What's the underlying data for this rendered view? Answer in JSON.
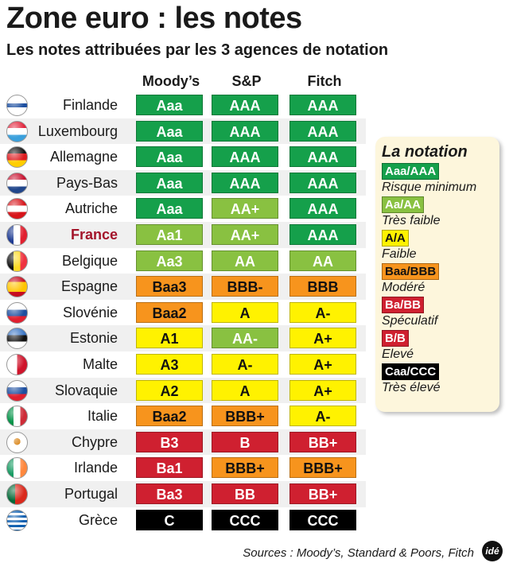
{
  "title": "Zone euro : les notes",
  "subtitle": "Les notes attribuées par les 3 agences de notation",
  "columns": [
    "Moody’s",
    "S&P",
    "Fitch"
  ],
  "chart_data": {
    "type": "table",
    "rows": [
      {
        "country": "Finlande",
        "moodys": "Aaa",
        "sp": "AAA",
        "fitch": "AAA"
      },
      {
        "country": "Luxembourg",
        "moodys": "Aaa",
        "sp": "AAA",
        "fitch": "AAA"
      },
      {
        "country": "Allemagne",
        "moodys": "Aaa",
        "sp": "AAA",
        "fitch": "AAA"
      },
      {
        "country": "Pays-Bas",
        "moodys": "Aaa",
        "sp": "AAA",
        "fitch": "AAA"
      },
      {
        "country": "Autriche",
        "moodys": "Aaa",
        "sp": "AA+",
        "fitch": "AAA"
      },
      {
        "country": "France",
        "moodys": "Aa1",
        "sp": "AA+",
        "fitch": "AAA"
      },
      {
        "country": "Belgique",
        "moodys": "Aa3",
        "sp": "AA",
        "fitch": "AA"
      },
      {
        "country": "Espagne",
        "moodys": "Baa3",
        "sp": "BBB-",
        "fitch": "BBB"
      },
      {
        "country": "Slovénie",
        "moodys": "Baa2",
        "sp": "A",
        "fitch": "A-"
      },
      {
        "country": "Estonie",
        "moodys": "A1",
        "sp": "AA-",
        "fitch": "A+"
      },
      {
        "country": "Malte",
        "moodys": "A3",
        "sp": "A-",
        "fitch": "A+"
      },
      {
        "country": "Slovaquie",
        "moodys": "A2",
        "sp": "A",
        "fitch": "A+"
      },
      {
        "country": "Italie",
        "moodys": "Baa2",
        "sp": "BBB+",
        "fitch": "A-"
      },
      {
        "country": "Chypre",
        "moodys": "B3",
        "sp": "B",
        "fitch": "BB+"
      },
      {
        "country": "Irlande",
        "moodys": "Ba1",
        "sp": "BBB+",
        "fitch": "BBB+"
      },
      {
        "country": "Portugal",
        "moodys": "Ba3",
        "sp": "BB",
        "fitch": "BB+"
      },
      {
        "country": "Grèce",
        "moodys": "C",
        "sp": "CCC",
        "fitch": "CCC"
      }
    ],
    "highlight_country": "France"
  },
  "legend": {
    "title": "La notation",
    "items": [
      {
        "label": "Aaa/AAA",
        "desc": "Risque minimum",
        "cls": "g1"
      },
      {
        "label": "Aa/AA",
        "desc": "Très faible",
        "cls": "g2"
      },
      {
        "label": "A/A",
        "desc": "Faible",
        "cls": "y"
      },
      {
        "label": "Baa/BBB",
        "desc": "Modéré",
        "cls": "o"
      },
      {
        "label": "Ba/BB",
        "desc": "Spéculatif",
        "cls": "r"
      },
      {
        "label": "B/B",
        "desc": "Elevé",
        "cls": "r"
      },
      {
        "label": "Caa/CCC",
        "desc": "Très élevé",
        "cls": "b"
      }
    ]
  },
  "colors": {
    "Aaa/AAA": "#15a04b",
    "Aa/AA": "#89c141",
    "A/A": "#fff200",
    "Baa/BBB": "#f7941d",
    "Ba/BB": "#cf2030",
    "B/B": "#cf2030",
    "Caa/CCC": "#000000",
    "highlight": "#a3142a"
  },
  "sources": "Sources : Moody’s, Standard & Poors, Fitch",
  "logo_text": "idé"
}
